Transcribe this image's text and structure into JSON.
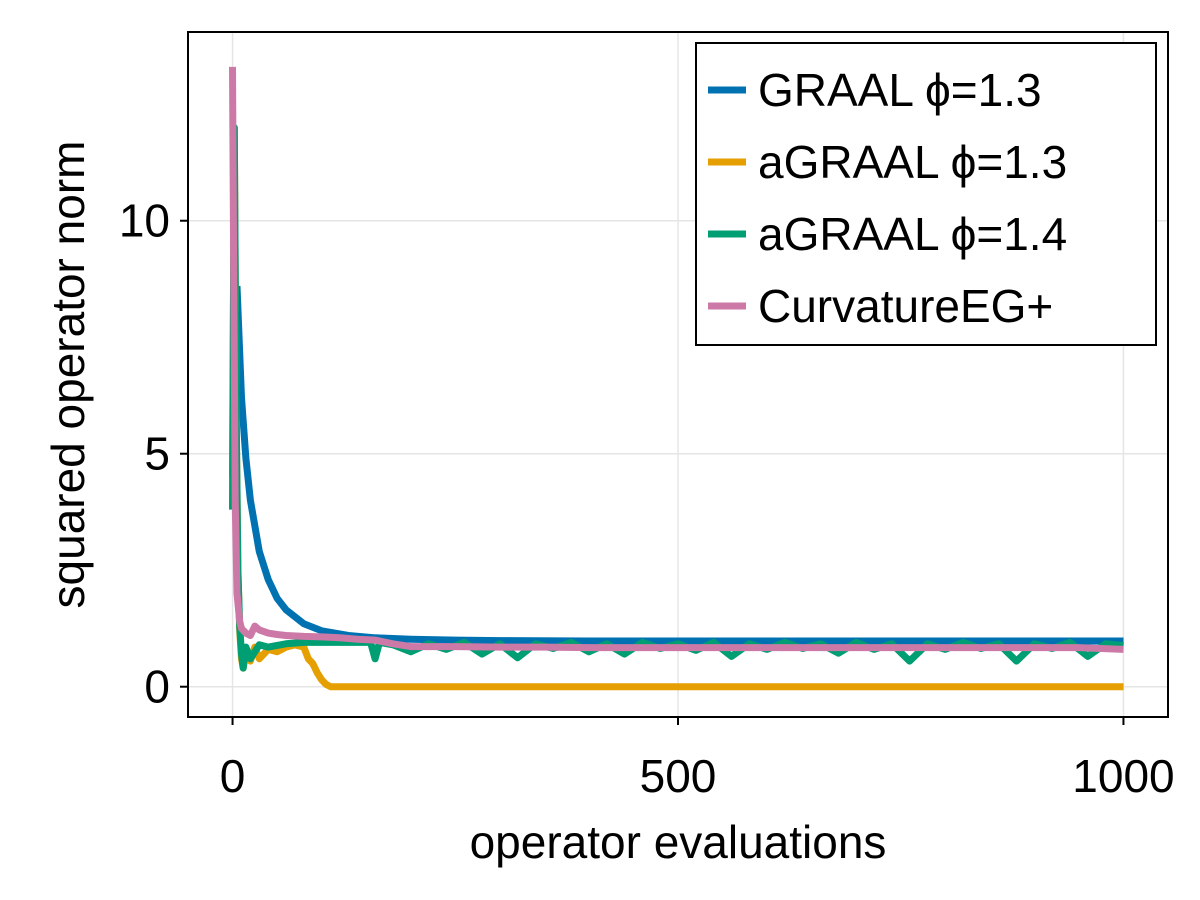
{
  "chart_data": {
    "type": "line",
    "title": "",
    "xlabel": "operator evaluations",
    "ylabel": "squared operator norm",
    "xlim": [
      -50,
      1050
    ],
    "ylim": [
      -0.65,
      14.05
    ],
    "xticks": [
      0,
      500,
      1000
    ],
    "yticks": [
      0,
      5,
      10
    ],
    "grid": true,
    "legend_position": "top-right",
    "colors": {
      "graal_1_3": "#0072B2",
      "agraal_1_3": "#E69F00",
      "agraal_1_4": "#009E73",
      "curvature_eg_plus": "#CC79A7",
      "grid": "#e5e5e5",
      "axes": "#000000"
    },
    "series": [
      {
        "name": "GRAAL ϕ=1.3",
        "color": "#0072B2",
        "x": [
          5,
          10,
          15,
          20,
          30,
          40,
          50,
          60,
          80,
          100,
          130,
          160,
          200,
          250,
          300,
          400,
          500,
          600,
          700,
          800,
          900,
          1000
        ],
        "y": [
          8.6,
          6.2,
          4.9,
          4.0,
          2.9,
          2.3,
          1.9,
          1.65,
          1.35,
          1.2,
          1.1,
          1.05,
          1.02,
          1.0,
          0.99,
          0.98,
          0.98,
          0.98,
          0.98,
          0.98,
          0.98,
          0.98
        ]
      },
      {
        "name": "aGRAAL ϕ=1.3",
        "color": "#E69F00",
        "x": [
          0,
          2,
          4,
          6,
          8,
          10,
          12,
          15,
          20,
          25,
          30,
          40,
          50,
          60,
          70,
          80,
          85,
          90,
          95,
          100,
          105,
          110,
          120,
          150,
          200,
          300,
          400,
          500,
          600,
          700,
          800,
          900,
          1000
        ],
        "y": [
          4.5,
          12.0,
          6.0,
          2.5,
          1.2,
          0.6,
          0.4,
          0.8,
          0.55,
          0.85,
          0.6,
          0.8,
          0.75,
          0.85,
          0.9,
          0.85,
          0.6,
          0.5,
          0.3,
          0.15,
          0.05,
          0.0,
          0.0,
          0.0,
          0.0,
          0.0,
          0.0,
          0.0,
          0.0,
          0.0,
          0.0,
          0.0,
          0.0
        ]
      },
      {
        "name": "aGRAAL ϕ=1.4",
        "color": "#009E73",
        "x": [
          0,
          2,
          4,
          6,
          8,
          10,
          12,
          15,
          20,
          30,
          40,
          60,
          80,
          100,
          120,
          140,
          155,
          160,
          165,
          180,
          200,
          220,
          240,
          260,
          280,
          300,
          320,
          340,
          360,
          380,
          400,
          420,
          440,
          460,
          480,
          500,
          520,
          540,
          560,
          580,
          600,
          620,
          640,
          660,
          680,
          700,
          720,
          740,
          760,
          780,
          800,
          820,
          840,
          860,
          880,
          900,
          920,
          940,
          960,
          980,
          1000
        ],
        "y": [
          3.8,
          12.0,
          6.0,
          2.5,
          1.3,
          0.7,
          0.4,
          0.85,
          0.6,
          0.9,
          0.85,
          0.92,
          0.95,
          0.95,
          0.95,
          0.95,
          0.95,
          0.6,
          0.95,
          0.9,
          0.75,
          0.92,
          0.8,
          0.95,
          0.7,
          0.92,
          0.62,
          0.92,
          0.82,
          0.95,
          0.75,
          0.92,
          0.7,
          0.95,
          0.82,
          0.92,
          0.78,
          0.95,
          0.65,
          0.92,
          0.8,
          0.95,
          0.82,
          0.92,
          0.72,
          0.95,
          0.8,
          0.92,
          0.55,
          0.92,
          0.8,
          0.95,
          0.82,
          0.92,
          0.55,
          0.92,
          0.82,
          0.95,
          0.65,
          0.92,
          0.88
        ]
      },
      {
        "name": "CurvatureEG+",
        "color": "#CC79A7",
        "x": [
          0,
          1,
          3,
          5,
          8,
          10,
          15,
          20,
          25,
          30,
          40,
          50,
          60,
          80,
          100,
          120,
          140,
          160,
          180,
          200,
          250,
          300,
          350,
          400,
          450,
          500,
          550,
          600,
          650,
          700,
          750,
          800,
          850,
          900,
          950,
          1000
        ],
        "y": [
          13.3,
          10.0,
          4.0,
          2.0,
          1.4,
          1.25,
          1.15,
          1.1,
          1.3,
          1.22,
          1.15,
          1.12,
          1.1,
          1.08,
          1.07,
          1.05,
          1.02,
          1.0,
          0.92,
          0.86,
          0.86,
          0.85,
          0.85,
          0.84,
          0.84,
          0.84,
          0.84,
          0.84,
          0.84,
          0.84,
          0.84,
          0.84,
          0.84,
          0.84,
          0.84,
          0.8
        ]
      }
    ]
  }
}
